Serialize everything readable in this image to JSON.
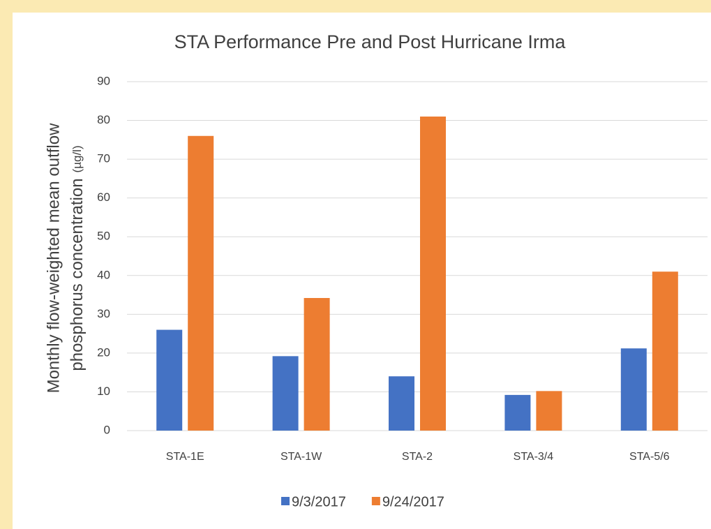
{
  "chart_data": {
    "type": "bar",
    "title": "STA Performance Pre and Post  Hurricane Irma",
    "y_label": [
      "Monthly flow-weighted mean outflow",
      "phosphorus concentration"
    ],
    "y_unit": "(µg/l)",
    "categories": [
      "STA-1E",
      "STA-1W",
      "STA-2",
      "STA-3/4",
      "STA-5/6"
    ],
    "series": [
      {
        "name": "9/3/2017",
        "color": "#4472c4",
        "values": [
          26,
          19.2,
          14,
          9.2,
          21.2
        ]
      },
      {
        "name": "9/24/2017",
        "color": "#ed7d31",
        "values": [
          76,
          34.2,
          81,
          10.2,
          41
        ]
      }
    ],
    "ylim": [
      0,
      90
    ],
    "yticks": [
      0,
      10,
      20,
      30,
      40,
      50,
      60,
      70,
      80,
      90
    ],
    "grid": true,
    "legend": "bottom"
  }
}
